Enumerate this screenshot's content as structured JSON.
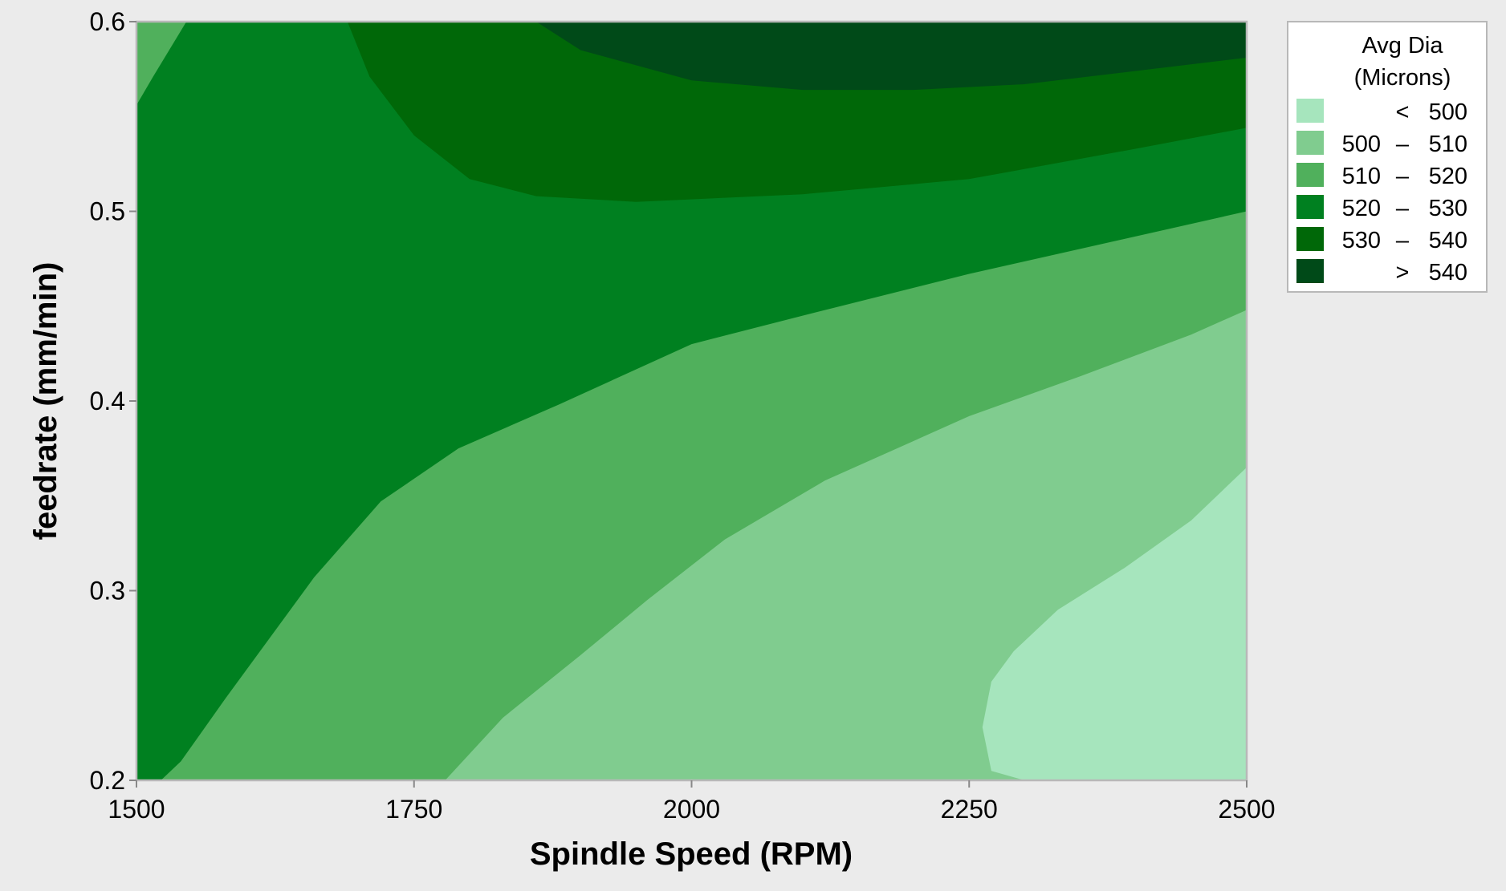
{
  "chart_data": {
    "type": "contour",
    "xlabel": "Spindle Speed (RPM)",
    "ylabel": "feedrate (mm/min)",
    "xlim": [
      1500,
      2500
    ],
    "ylim": [
      0.2,
      0.6
    ],
    "x_ticks": [
      "1500",
      "1750",
      "2000",
      "2250",
      "2500"
    ],
    "y_ticks": [
      "0.2",
      "0.3",
      "0.4",
      "0.5",
      "0.6"
    ],
    "legend": {
      "title_line1": "Avg Dia",
      "title_line2": "(Microns)",
      "position": "top-right",
      "bands": [
        {
          "op": "<",
          "lo": "",
          "hi": "500",
          "color": "#a6e5bd"
        },
        {
          "op": "–",
          "lo": "500",
          "hi": "510",
          "color": "#80cc8f"
        },
        {
          "op": "–",
          "lo": "510",
          "hi": "520",
          "color": "#50b05c"
        },
        {
          "op": "–",
          "lo": "520",
          "hi": "530",
          "color": "#008020"
        },
        {
          "op": "–",
          "lo": "530",
          "hi": "540",
          "color": "#006808"
        },
        {
          "op": ">",
          "lo": "",
          "hi": "540",
          "color": "#004a18"
        }
      ]
    },
    "regions": [
      {
        "band": "510-520",
        "color": "#50b05c",
        "points": [
          [
            1500,
            0.2
          ],
          [
            2500,
            0.2
          ],
          [
            2500,
            0.6
          ],
          [
            1500,
            0.6
          ]
        ]
      },
      {
        "band": "520-530",
        "color": "#008020",
        "points": [
          [
            1500,
            0.2
          ],
          [
            1522,
            0.2
          ],
          [
            1540,
            0.21
          ],
          [
            1580,
            0.243
          ],
          [
            1660,
            0.307
          ],
          [
            1720,
            0.347
          ],
          [
            1790,
            0.375
          ],
          [
            1880,
            0.398
          ],
          [
            2000,
            0.43
          ],
          [
            2100,
            0.445
          ],
          [
            2250,
            0.467
          ],
          [
            2500,
            0.5
          ],
          [
            2500,
            0.6
          ],
          [
            1545,
            0.6
          ],
          [
            1515,
            0.571
          ],
          [
            1500,
            0.556
          ]
        ]
      },
      {
        "band": "530-540",
        "color": "#006808",
        "points": [
          [
            1690,
            0.6
          ],
          [
            1710,
            0.571
          ],
          [
            1750,
            0.54
          ],
          [
            1800,
            0.517
          ],
          [
            1860,
            0.508
          ],
          [
            1950,
            0.505
          ],
          [
            2100,
            0.509
          ],
          [
            2250,
            0.517
          ],
          [
            2400,
            0.533
          ],
          [
            2500,
            0.544
          ],
          [
            2500,
            0.6
          ]
        ]
      },
      {
        "band": ">540",
        "color": "#004a18",
        "points": [
          [
            1860,
            0.6
          ],
          [
            1900,
            0.585
          ],
          [
            2000,
            0.569
          ],
          [
            2100,
            0.564
          ],
          [
            2200,
            0.564
          ],
          [
            2300,
            0.567
          ],
          [
            2400,
            0.574
          ],
          [
            2500,
            0.581
          ],
          [
            2500,
            0.6
          ]
        ]
      },
      {
        "band": "500-510",
        "color": "#80cc8f",
        "points": [
          [
            1778,
            0.2
          ],
          [
            1830,
            0.233
          ],
          [
            1900,
            0.266
          ],
          [
            1960,
            0.295
          ],
          [
            2030,
            0.327
          ],
          [
            2120,
            0.358
          ],
          [
            2250,
            0.392
          ],
          [
            2350,
            0.413
          ],
          [
            2450,
            0.435
          ],
          [
            2500,
            0.448
          ],
          [
            2500,
            0.2
          ]
        ]
      },
      {
        "band": "<500",
        "color": "#a6e5bd",
        "points": [
          [
            2300,
            0.2
          ],
          [
            2270,
            0.205
          ],
          [
            2262,
            0.228
          ],
          [
            2270,
            0.252
          ],
          [
            2290,
            0.268
          ],
          [
            2330,
            0.29
          ],
          [
            2390,
            0.312
          ],
          [
            2450,
            0.337
          ],
          [
            2500,
            0.365
          ],
          [
            2500,
            0.2
          ]
        ]
      }
    ]
  }
}
